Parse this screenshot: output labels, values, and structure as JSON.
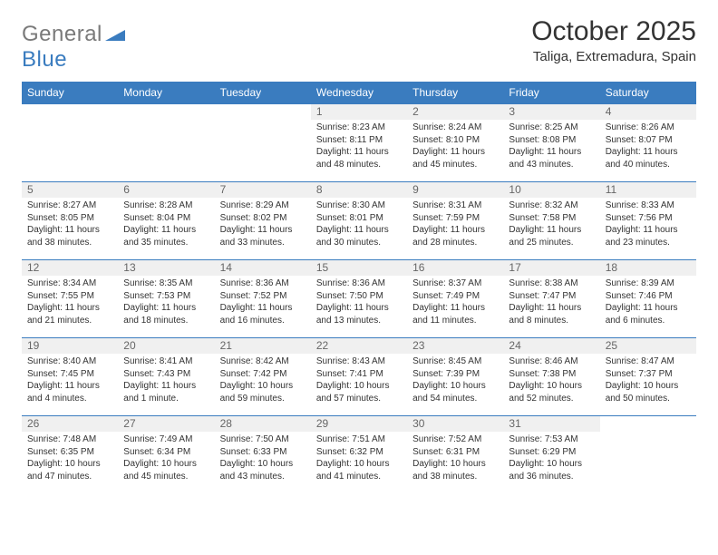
{
  "brand": {
    "part1": "General",
    "part2": "Blue"
  },
  "title": "October 2025",
  "location": "Taliga, Extremadura, Spain",
  "colors": {
    "header_bg": "#3a7cbf",
    "header_text": "#ffffff",
    "cell_border": "#3a7cbf",
    "daynum_bg": "#f0f0f0",
    "daynum_text": "#666666",
    "body_text": "#333333",
    "logo_gray": "#7a7a7a",
    "logo_blue": "#3a7cbf"
  },
  "typography": {
    "title_fontsize": 30,
    "location_fontsize": 15,
    "weekday_fontsize": 12,
    "daynum_fontsize": 12,
    "body_fontsize": 10
  },
  "weekdays": [
    "Sunday",
    "Monday",
    "Tuesday",
    "Wednesday",
    "Thursday",
    "Friday",
    "Saturday"
  ],
  "weeks": [
    [
      null,
      null,
      null,
      {
        "n": "1",
        "sr": "8:23 AM",
        "ss": "8:11 PM",
        "dl": "11 hours and 48 minutes."
      },
      {
        "n": "2",
        "sr": "8:24 AM",
        "ss": "8:10 PM",
        "dl": "11 hours and 45 minutes."
      },
      {
        "n": "3",
        "sr": "8:25 AM",
        "ss": "8:08 PM",
        "dl": "11 hours and 43 minutes."
      },
      {
        "n": "4",
        "sr": "8:26 AM",
        "ss": "8:07 PM",
        "dl": "11 hours and 40 minutes."
      }
    ],
    [
      {
        "n": "5",
        "sr": "8:27 AM",
        "ss": "8:05 PM",
        "dl": "11 hours and 38 minutes."
      },
      {
        "n": "6",
        "sr": "8:28 AM",
        "ss": "8:04 PM",
        "dl": "11 hours and 35 minutes."
      },
      {
        "n": "7",
        "sr": "8:29 AM",
        "ss": "8:02 PM",
        "dl": "11 hours and 33 minutes."
      },
      {
        "n": "8",
        "sr": "8:30 AM",
        "ss": "8:01 PM",
        "dl": "11 hours and 30 minutes."
      },
      {
        "n": "9",
        "sr": "8:31 AM",
        "ss": "7:59 PM",
        "dl": "11 hours and 28 minutes."
      },
      {
        "n": "10",
        "sr": "8:32 AM",
        "ss": "7:58 PM",
        "dl": "11 hours and 25 minutes."
      },
      {
        "n": "11",
        "sr": "8:33 AM",
        "ss": "7:56 PM",
        "dl": "11 hours and 23 minutes."
      }
    ],
    [
      {
        "n": "12",
        "sr": "8:34 AM",
        "ss": "7:55 PM",
        "dl": "11 hours and 21 minutes."
      },
      {
        "n": "13",
        "sr": "8:35 AM",
        "ss": "7:53 PM",
        "dl": "11 hours and 18 minutes."
      },
      {
        "n": "14",
        "sr": "8:36 AM",
        "ss": "7:52 PM",
        "dl": "11 hours and 16 minutes."
      },
      {
        "n": "15",
        "sr": "8:36 AM",
        "ss": "7:50 PM",
        "dl": "11 hours and 13 minutes."
      },
      {
        "n": "16",
        "sr": "8:37 AM",
        "ss": "7:49 PM",
        "dl": "11 hours and 11 minutes."
      },
      {
        "n": "17",
        "sr": "8:38 AM",
        "ss": "7:47 PM",
        "dl": "11 hours and 8 minutes."
      },
      {
        "n": "18",
        "sr": "8:39 AM",
        "ss": "7:46 PM",
        "dl": "11 hours and 6 minutes."
      }
    ],
    [
      {
        "n": "19",
        "sr": "8:40 AM",
        "ss": "7:45 PM",
        "dl": "11 hours and 4 minutes."
      },
      {
        "n": "20",
        "sr": "8:41 AM",
        "ss": "7:43 PM",
        "dl": "11 hours and 1 minute."
      },
      {
        "n": "21",
        "sr": "8:42 AM",
        "ss": "7:42 PM",
        "dl": "10 hours and 59 minutes."
      },
      {
        "n": "22",
        "sr": "8:43 AM",
        "ss": "7:41 PM",
        "dl": "10 hours and 57 minutes."
      },
      {
        "n": "23",
        "sr": "8:45 AM",
        "ss": "7:39 PM",
        "dl": "10 hours and 54 minutes."
      },
      {
        "n": "24",
        "sr": "8:46 AM",
        "ss": "7:38 PM",
        "dl": "10 hours and 52 minutes."
      },
      {
        "n": "25",
        "sr": "8:47 AM",
        "ss": "7:37 PM",
        "dl": "10 hours and 50 minutes."
      }
    ],
    [
      {
        "n": "26",
        "sr": "7:48 AM",
        "ss": "6:35 PM",
        "dl": "10 hours and 47 minutes."
      },
      {
        "n": "27",
        "sr": "7:49 AM",
        "ss": "6:34 PM",
        "dl": "10 hours and 45 minutes."
      },
      {
        "n": "28",
        "sr": "7:50 AM",
        "ss": "6:33 PM",
        "dl": "10 hours and 43 minutes."
      },
      {
        "n": "29",
        "sr": "7:51 AM",
        "ss": "6:32 PM",
        "dl": "10 hours and 41 minutes."
      },
      {
        "n": "30",
        "sr": "7:52 AM",
        "ss": "6:31 PM",
        "dl": "10 hours and 38 minutes."
      },
      {
        "n": "31",
        "sr": "7:53 AM",
        "ss": "6:29 PM",
        "dl": "10 hours and 36 minutes."
      },
      null
    ]
  ],
  "labels": {
    "sunrise": "Sunrise:",
    "sunset": "Sunset:",
    "daylight": "Daylight:"
  }
}
